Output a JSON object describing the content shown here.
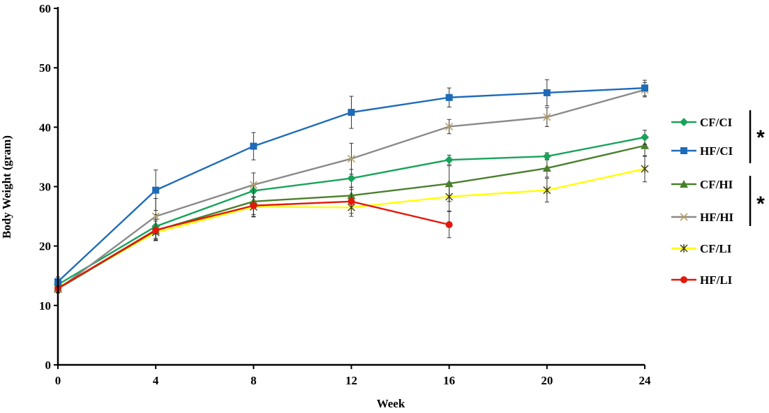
{
  "chart_data": {
    "type": "line",
    "title": "",
    "xlabel": "Week",
    "ylabel": "Body Weight (gram)",
    "x": [
      0,
      4,
      8,
      12,
      16,
      20,
      24
    ],
    "xticks": [
      "0",
      "4",
      "8",
      "12",
      "16",
      "20",
      "24"
    ],
    "xlim": [
      0,
      24
    ],
    "ylim": [
      0,
      60
    ],
    "yticks": [
      "0",
      "10",
      "20",
      "30",
      "40",
      "50",
      "60"
    ],
    "grid": false,
    "legend_position": "right",
    "series": [
      {
        "name": "CF/CI",
        "color": "#18a35a",
        "marker": "diamond",
        "values": [
          13.5,
          23.3,
          29.3,
          31.4,
          34.5,
          35.1,
          38.3
        ],
        "errors": [
          0.8,
          2.0,
          1.0,
          1.5,
          0.8,
          0.6,
          1.2
        ]
      },
      {
        "name": "HF/CI",
        "color": "#1e6bb8",
        "marker": "square",
        "values": [
          14.0,
          29.4,
          36.8,
          42.5,
          45.0,
          45.8,
          46.6
        ],
        "errors": [
          0.8,
          3.4,
          2.3,
          2.7,
          1.6,
          2.2,
          1.3
        ]
      },
      {
        "name": "CF/HI",
        "color": "#4b7f2d",
        "marker": "triangle",
        "values": [
          12.8,
          22.6,
          27.5,
          28.5,
          30.5,
          33.1,
          36.9
        ],
        "errors": [
          0.6,
          1.6,
          2.6,
          1.4,
          3.0,
          1.5,
          1.8
        ]
      },
      {
        "name": "HF/HI",
        "color": "#8a8a8a",
        "marker": "x",
        "values": [
          12.7,
          25.0,
          30.3,
          34.7,
          40.1,
          41.7,
          46.3
        ],
        "errors": [
          0.6,
          3.0,
          2.0,
          2.6,
          1.2,
          1.6,
          1.2
        ]
      },
      {
        "name": "CF/LI",
        "color": "#ffff00",
        "marker": "asterisk",
        "values": [
          13.0,
          22.3,
          26.6,
          26.5,
          28.3,
          29.4,
          33.0
        ],
        "errors": [
          0.6,
          1.2,
          1.6,
          1.5,
          2.4,
          2.0,
          2.2
        ]
      },
      {
        "name": "HF/LI",
        "color": "#e3170a",
        "marker": "circle",
        "values": [
          12.9,
          22.7,
          26.8,
          27.5,
          23.6,
          null,
          null
        ],
        "errors": [
          0.7,
          1.8,
          1.5,
          2.0,
          2.2,
          null,
          null
        ]
      }
    ],
    "annotations": [
      {
        "text": "*",
        "groups": [
          "CF/CI",
          "HF/CI"
        ]
      },
      {
        "text": "*",
        "groups": [
          "CF/HI",
          "HF/HI"
        ]
      }
    ]
  }
}
